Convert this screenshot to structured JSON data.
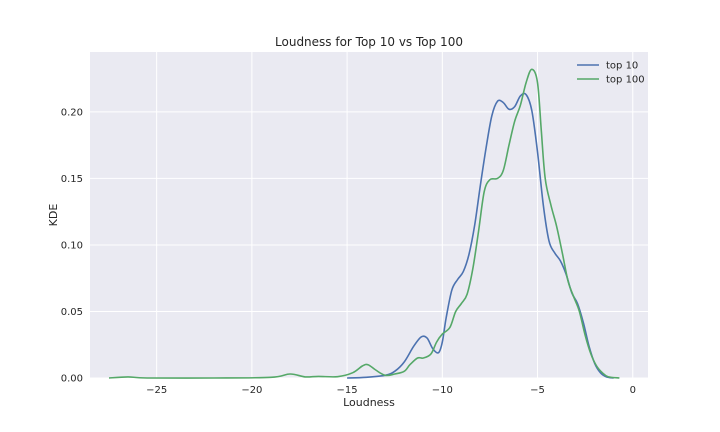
{
  "chart_data": {
    "type": "line",
    "title": "Loudness for Top 10 vs Top 100",
    "xlabel": "Loudness",
    "ylabel": "KDE",
    "xlim": [
      -28.5,
      0.8
    ],
    "ylim": [
      0,
      0.245
    ],
    "xticks": [
      -25,
      -20,
      -15,
      -10,
      -5,
      0
    ],
    "xtick_labels": [
      "−25",
      "−20",
      "−15",
      "−10",
      "−5",
      "0"
    ],
    "yticks": [
      0,
      0.05,
      0.1,
      0.15,
      0.2
    ],
    "ytick_labels": [
      "0.00",
      "0.05",
      "0.10",
      "0.15",
      "0.20"
    ],
    "grid": true,
    "legend_position": "top-right",
    "series": [
      {
        "name": "top 10",
        "color": "#4c72b0",
        "points": [
          [
            -15.0,
            0.0
          ],
          [
            -14.0,
            0.0005
          ],
          [
            -13.0,
            0.002
          ],
          [
            -12.5,
            0.005
          ],
          [
            -12.0,
            0.012
          ],
          [
            -11.5,
            0.024
          ],
          [
            -11.1,
            0.031
          ],
          [
            -10.8,
            0.03
          ],
          [
            -10.5,
            0.022
          ],
          [
            -10.2,
            0.019
          ],
          [
            -10.0,
            0.027
          ],
          [
            -9.8,
            0.045
          ],
          [
            -9.5,
            0.066
          ],
          [
            -9.2,
            0.074
          ],
          [
            -8.9,
            0.08
          ],
          [
            -8.6,
            0.093
          ],
          [
            -8.3,
            0.115
          ],
          [
            -8.0,
            0.145
          ],
          [
            -7.7,
            0.173
          ],
          [
            -7.4,
            0.197
          ],
          [
            -7.1,
            0.208
          ],
          [
            -6.8,
            0.207
          ],
          [
            -6.5,
            0.202
          ],
          [
            -6.2,
            0.204
          ],
          [
            -5.9,
            0.212
          ],
          [
            -5.6,
            0.213
          ],
          [
            -5.3,
            0.201
          ],
          [
            -5.0,
            0.17
          ],
          [
            -4.7,
            0.13
          ],
          [
            -4.4,
            0.103
          ],
          [
            -4.1,
            0.094
          ],
          [
            -3.8,
            0.088
          ],
          [
            -3.5,
            0.078
          ],
          [
            -3.2,
            0.064
          ],
          [
            -2.9,
            0.056
          ],
          [
            -2.6,
            0.042
          ],
          [
            -2.3,
            0.024
          ],
          [
            -2.0,
            0.011
          ],
          [
            -1.7,
            0.004
          ],
          [
            -1.4,
            0.001
          ],
          [
            -1.0,
            0.0
          ]
        ]
      },
      {
        "name": "top 100",
        "color": "#55a868",
        "points": [
          [
            -27.5,
            0.0
          ],
          [
            -26.5,
            0.0008
          ],
          [
            -25.5,
            0.0
          ],
          [
            -22.0,
            0.0
          ],
          [
            -19.0,
            0.0005
          ],
          [
            -18.0,
            0.003
          ],
          [
            -17.2,
            0.0008
          ],
          [
            -16.5,
            0.0012
          ],
          [
            -15.5,
            0.001
          ],
          [
            -14.7,
            0.004
          ],
          [
            -14.2,
            0.009
          ],
          [
            -13.9,
            0.01
          ],
          [
            -13.5,
            0.006
          ],
          [
            -13.0,
            0.002
          ],
          [
            -12.5,
            0.003
          ],
          [
            -12.0,
            0.005
          ],
          [
            -11.7,
            0.01
          ],
          [
            -11.3,
            0.015
          ],
          [
            -11.0,
            0.015
          ],
          [
            -10.6,
            0.018
          ],
          [
            -10.3,
            0.027
          ],
          [
            -10.0,
            0.033
          ],
          [
            -9.6,
            0.038
          ],
          [
            -9.3,
            0.05
          ],
          [
            -9.0,
            0.056
          ],
          [
            -8.7,
            0.063
          ],
          [
            -8.4,
            0.082
          ],
          [
            -8.1,
            0.11
          ],
          [
            -7.8,
            0.14
          ],
          [
            -7.5,
            0.149
          ],
          [
            -7.1,
            0.15
          ],
          [
            -6.8,
            0.156
          ],
          [
            -6.5,
            0.175
          ],
          [
            -6.2,
            0.193
          ],
          [
            -5.9,
            0.205
          ],
          [
            -5.6,
            0.222
          ],
          [
            -5.3,
            0.232
          ],
          [
            -5.0,
            0.222
          ],
          [
            -4.8,
            0.185
          ],
          [
            -4.6,
            0.15
          ],
          [
            -4.3,
            0.13
          ],
          [
            -4.0,
            0.114
          ],
          [
            -3.7,
            0.094
          ],
          [
            -3.4,
            0.073
          ],
          [
            -3.1,
            0.061
          ],
          [
            -2.8,
            0.05
          ],
          [
            -2.5,
            0.032
          ],
          [
            -2.2,
            0.018
          ],
          [
            -1.9,
            0.009
          ],
          [
            -1.6,
            0.004
          ],
          [
            -1.3,
            0.001
          ],
          [
            -0.7,
            0.0
          ]
        ]
      }
    ]
  }
}
